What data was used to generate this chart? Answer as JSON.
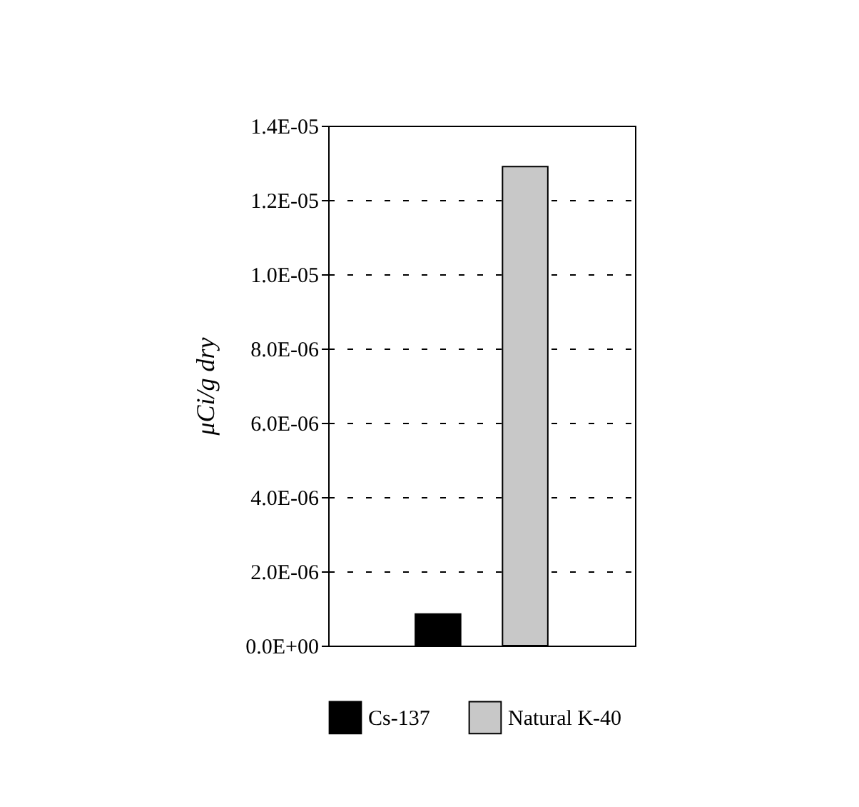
{
  "chart_data": {
    "type": "bar",
    "ylabel": "μCi/g dry",
    "categories": [
      null
    ],
    "series": [
      {
        "name": "Cs-137",
        "color": "#000000",
        "values": [
          8.5e-07
        ]
      },
      {
        "name": "Natural K-40",
        "color": "#c8c8c8",
        "values": [
          1.29e-05
        ]
      }
    ],
    "ylim": [
      0,
      1.4e-05
    ],
    "yticks": [
      {
        "value": 0,
        "label": "0.0E+00"
      },
      {
        "value": 2e-06,
        "label": "2.0E-06"
      },
      {
        "value": 4e-06,
        "label": "4.0E-06"
      },
      {
        "value": 6e-06,
        "label": "6.0E-06"
      },
      {
        "value": 8e-06,
        "label": "8.0E-06"
      },
      {
        "value": 1e-05,
        "label": "1.0E-05"
      },
      {
        "value": 1.2e-05,
        "label": "1.2E-05"
      },
      {
        "value": 1.4e-05,
        "label": "1.4E-05"
      }
    ],
    "grid": "y",
    "legend": "bottom"
  }
}
